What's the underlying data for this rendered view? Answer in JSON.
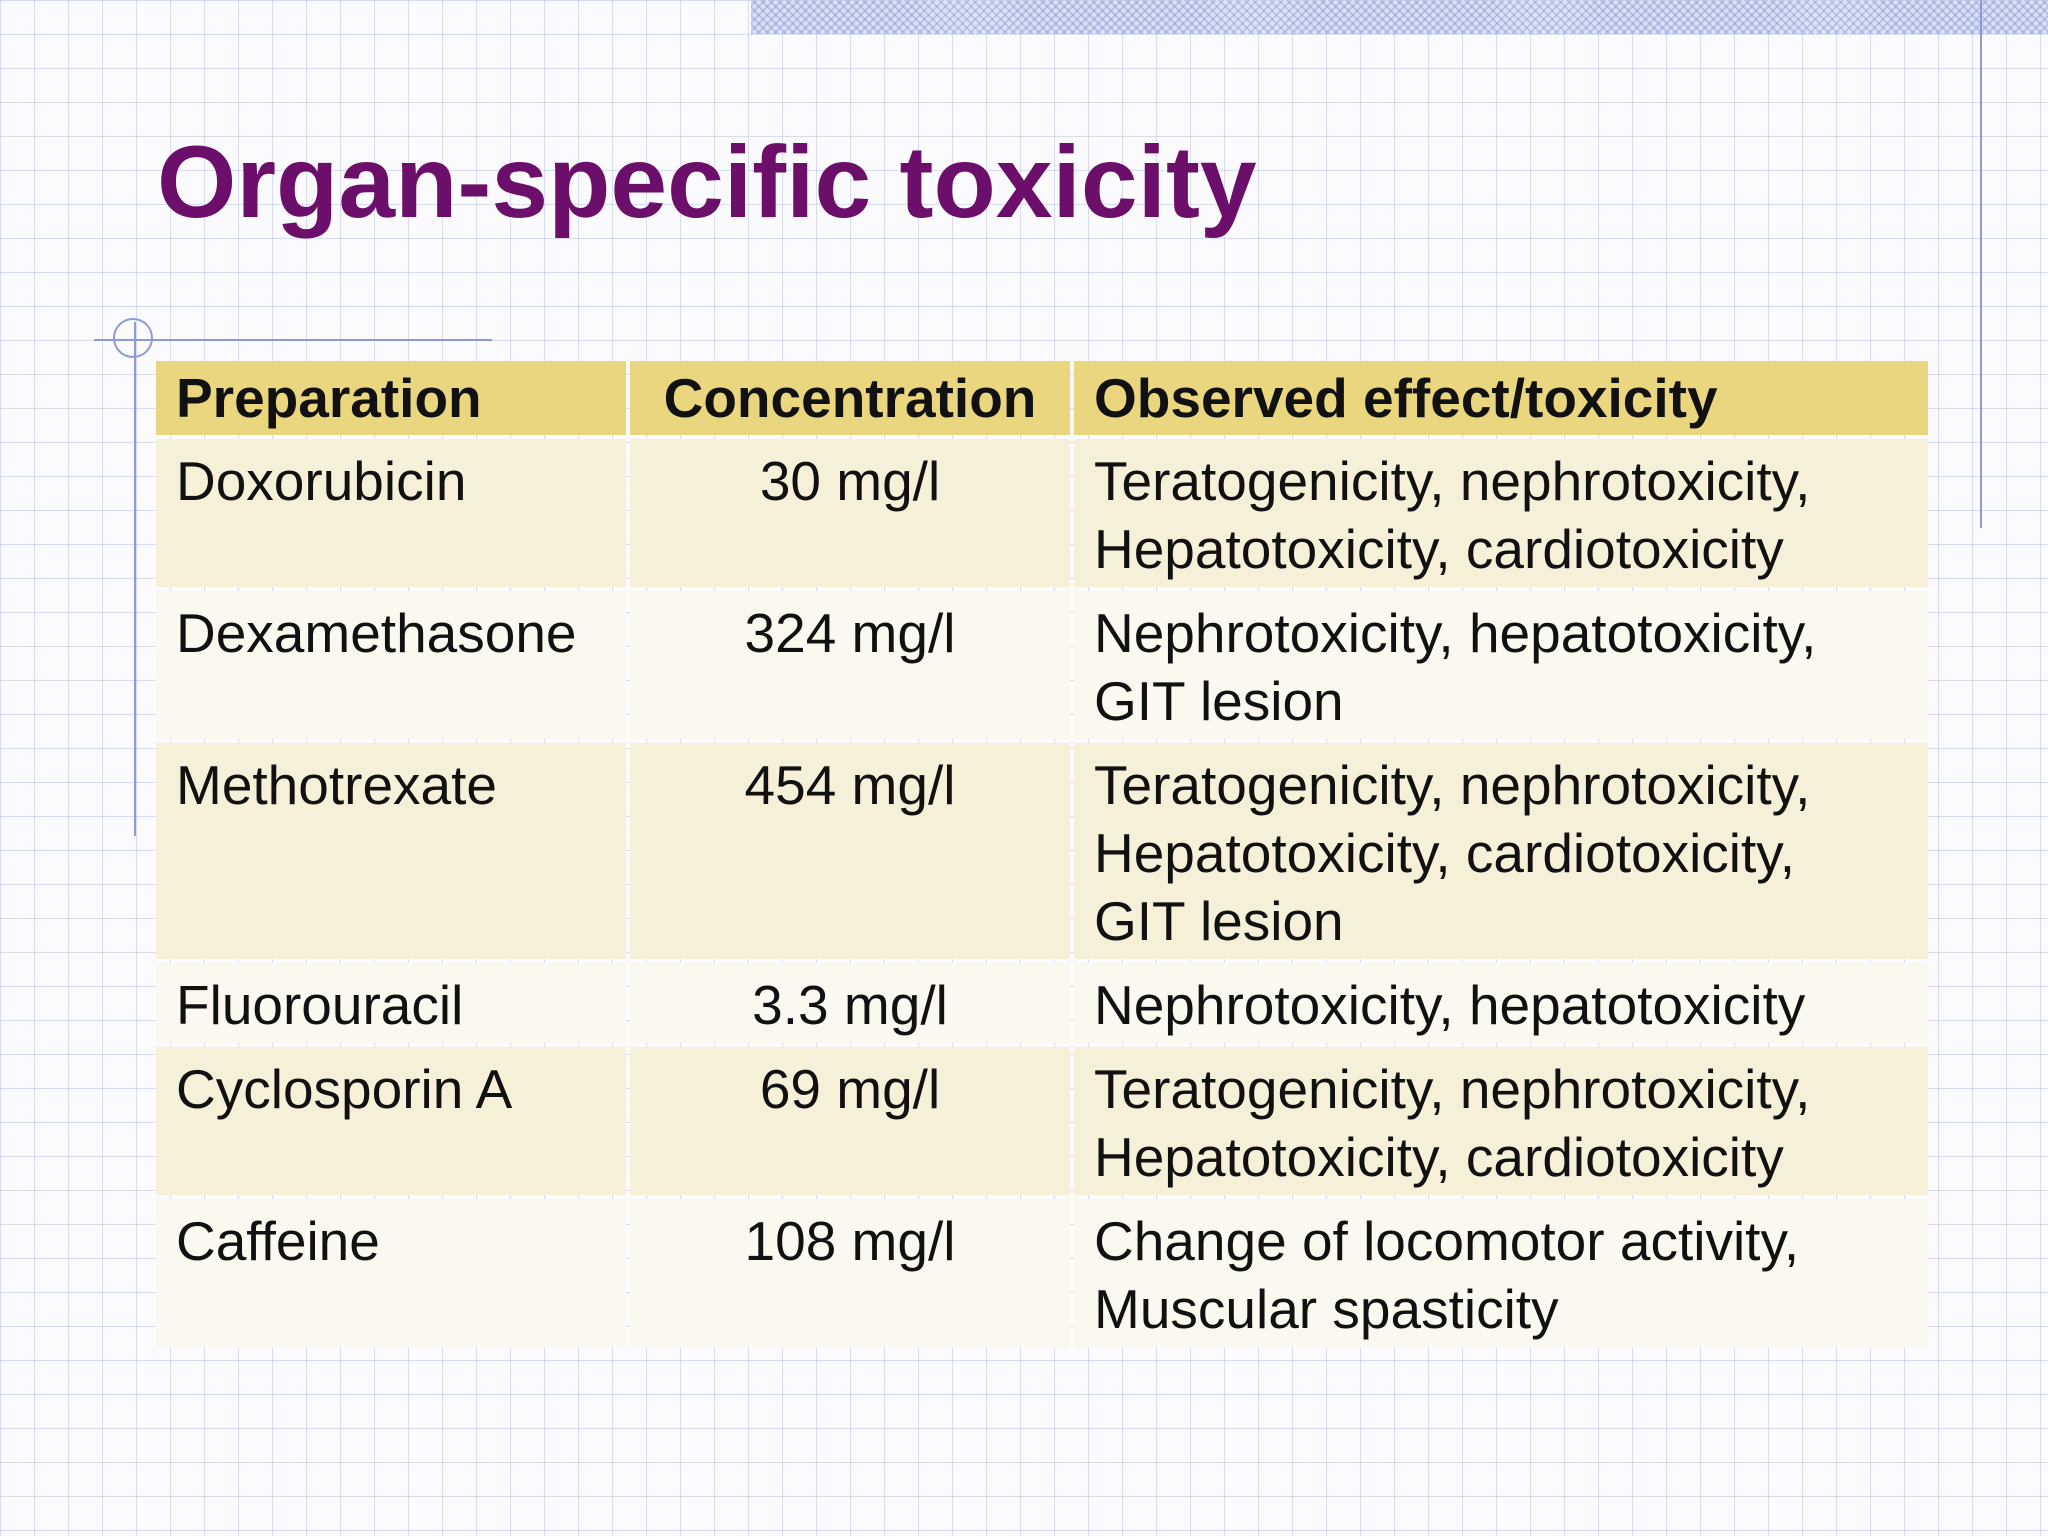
{
  "slide": {
    "title": "Organ-specific toxicity"
  },
  "table": {
    "headers": [
      "Preparation",
      "Concentration",
      "Observed effect/toxicity"
    ],
    "rows": [
      {
        "preparation": "Doxorubicin",
        "concentration": "30 mg/l",
        "effect": [
          "Teratogenicity, nephrotoxicity,",
          "Hepatotoxicity, cardiotoxicity"
        ]
      },
      {
        "preparation": "Dexamethasone",
        "concentration": "324 mg/l",
        "effect": [
          "Nephrotoxicity, hepatotoxicity,",
          "GIT lesion"
        ]
      },
      {
        "preparation": "Methotrexate",
        "concentration": "454 mg/l",
        "effect": [
          "Teratogenicity, nephrotoxicity,",
          "Hepatotoxicity, cardiotoxicity,",
          "GIT lesion"
        ]
      },
      {
        "preparation": "Fluorouracil",
        "concentration": "3.3 mg/l",
        "effect": [
          "Nephrotoxicity, hepatotoxicity"
        ]
      },
      {
        "preparation": "Cyclosporin A",
        "concentration": "69 mg/l",
        "effect": [
          "Teratogenicity, nephrotoxicity,",
          "Hepatotoxicity, cardiotoxicity"
        ]
      },
      {
        "preparation": "Caffeine",
        "concentration": "108 mg/l",
        "effect": [
          "Change of locomotor activity,",
          "Muscular spasticity"
        ]
      }
    ]
  },
  "colors": {
    "title": "#6b0f6b",
    "header_bg": "#ead67f",
    "row_odd_bg": "#f7f0d9",
    "row_even_bg": "#fbf9ef",
    "accent_lines": "#8c9ad8"
  }
}
